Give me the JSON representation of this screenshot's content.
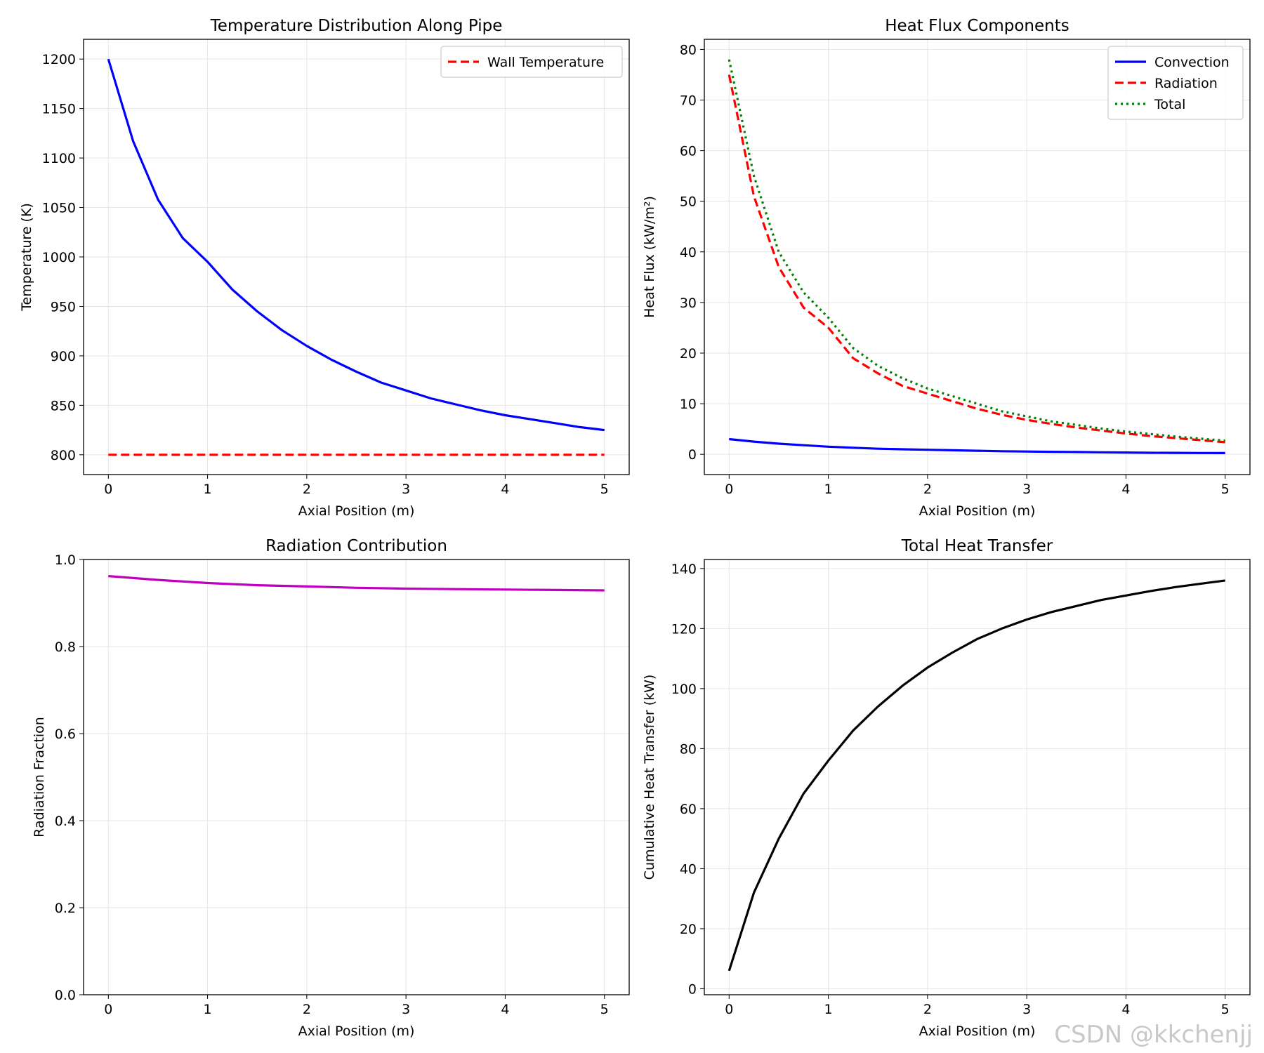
{
  "chart_data": [
    {
      "type": "line",
      "title": "Temperature Distribution Along Pipe",
      "xlabel": "Axial Position (m)",
      "ylabel": "Temperature (K)",
      "xlim": [
        -0.25,
        5.25
      ],
      "ylim": [
        780,
        1220
      ],
      "xticks": [
        "0",
        "1",
        "2",
        "3",
        "4",
        "5"
      ],
      "yticks": [
        "800",
        "850",
        "900",
        "950",
        "1000",
        "1050",
        "1100",
        "1150",
        "1200"
      ],
      "grid": true,
      "legend": "top-right",
      "x": [
        0,
        0.25,
        0.5,
        0.75,
        1,
        1.25,
        1.5,
        1.75,
        2,
        2.25,
        2.5,
        2.75,
        3,
        3.25,
        3.5,
        3.75,
        4,
        4.25,
        4.5,
        4.75,
        5
      ],
      "series": [
        {
          "name": "",
          "color": "#0000ff",
          "dash": "solid",
          "values": [
            1200,
            1117,
            1058,
            1019,
            995,
            967,
            945,
            926,
            910,
            896,
            884,
            873,
            865,
            857,
            851,
            845,
            840,
            836,
            832,
            828,
            825
          ]
        },
        {
          "name": "Wall Temperature",
          "color": "#ff0000",
          "dash": "dashed",
          "values": [
            800,
            800,
            800,
            800,
            800,
            800,
            800,
            800,
            800,
            800,
            800,
            800,
            800,
            800,
            800,
            800,
            800,
            800,
            800,
            800,
            800
          ]
        }
      ]
    },
    {
      "type": "line",
      "title": "Heat Flux Components",
      "xlabel": "Axial Position (m)",
      "ylabel": "Heat Flux (kW/m²)",
      "xlim": [
        -0.25,
        5.25
      ],
      "ylim": [
        -4,
        82
      ],
      "xticks": [
        "0",
        "1",
        "2",
        "3",
        "4",
        "5"
      ],
      "yticks": [
        "0",
        "10",
        "20",
        "30",
        "40",
        "50",
        "60",
        "70",
        "80"
      ],
      "grid": true,
      "legend": "top-right",
      "x": [
        0,
        0.25,
        0.5,
        0.75,
        1,
        1.25,
        1.5,
        1.75,
        2,
        2.25,
        2.5,
        2.75,
        3,
        3.25,
        3.5,
        3.75,
        4,
        4.25,
        4.5,
        4.75,
        5
      ],
      "series": [
        {
          "name": "Convection",
          "color": "#0000ff",
          "dash": "solid",
          "values": [
            3.0,
            2.5,
            2.1,
            1.8,
            1.5,
            1.3,
            1.1,
            1.0,
            0.9,
            0.8,
            0.7,
            0.6,
            0.55,
            0.5,
            0.45,
            0.4,
            0.35,
            0.3,
            0.28,
            0.26,
            0.25
          ]
        },
        {
          "name": "Radiation",
          "color": "#ff0000",
          "dash": "dashed",
          "values": [
            75,
            51,
            37,
            29,
            25,
            19,
            16,
            13.5,
            12,
            10.5,
            9,
            7.8,
            6.8,
            6,
            5.3,
            4.7,
            4.1,
            3.6,
            3.2,
            2.8,
            2.4
          ]
        },
        {
          "name": "Total",
          "color": "#008000",
          "dash": "dotted",
          "values": [
            78,
            55,
            40,
            32,
            27,
            21,
            17.5,
            15,
            13,
            11.5,
            10,
            8.5,
            7.5,
            6.5,
            5.8,
            5.1,
            4.5,
            4,
            3.5,
            3.1,
            2.7
          ]
        }
      ]
    },
    {
      "type": "line",
      "title": "Radiation Contribution",
      "xlabel": "Axial Position (m)",
      "ylabel": "Radiation Fraction",
      "xlim": [
        -0.25,
        5.25
      ],
      "ylim": [
        0,
        1
      ],
      "xticks": [
        "0",
        "1",
        "2",
        "3",
        "4",
        "5"
      ],
      "yticks": [
        "0.0",
        "0.2",
        "0.4",
        "0.6",
        "0.8",
        "1.0"
      ],
      "grid": true,
      "legend": "none",
      "x": [
        0,
        0.5,
        1,
        1.5,
        2,
        2.5,
        3,
        3.5,
        4,
        4.5,
        5
      ],
      "series": [
        {
          "name": "",
          "color": "#bf00bf",
          "dash": "solid",
          "values": [
            0.962,
            0.953,
            0.946,
            0.941,
            0.938,
            0.935,
            0.933,
            0.932,
            0.931,
            0.93,
            0.929
          ]
        }
      ]
    },
    {
      "type": "line",
      "title": "Total Heat Transfer",
      "xlabel": "Axial Position (m)",
      "ylabel": "Cumulative Heat Transfer (kW)",
      "xlim": [
        -0.25,
        5.25
      ],
      "ylim": [
        -2,
        143
      ],
      "xticks": [
        "0",
        "1",
        "2",
        "3",
        "4",
        "5"
      ],
      "yticks": [
        "0",
        "20",
        "40",
        "60",
        "80",
        "100",
        "120",
        "140"
      ],
      "grid": true,
      "legend": "none",
      "x": [
        0,
        0.25,
        0.5,
        0.75,
        1,
        1.25,
        1.5,
        1.75,
        2,
        2.25,
        2.5,
        2.75,
        3,
        3.25,
        3.5,
        3.75,
        4,
        4.25,
        4.5,
        4.75,
        5
      ],
      "series": [
        {
          "name": "",
          "color": "#000000",
          "dash": "solid",
          "values": [
            6,
            32,
            50,
            65,
            76,
            86,
            94,
            101,
            107,
            112,
            116.5,
            120,
            123,
            125.5,
            127.5,
            129.5,
            131,
            132.5,
            133.8,
            134.9,
            136
          ]
        }
      ]
    }
  ],
  "watermark": "CSDN @kkchenjj"
}
